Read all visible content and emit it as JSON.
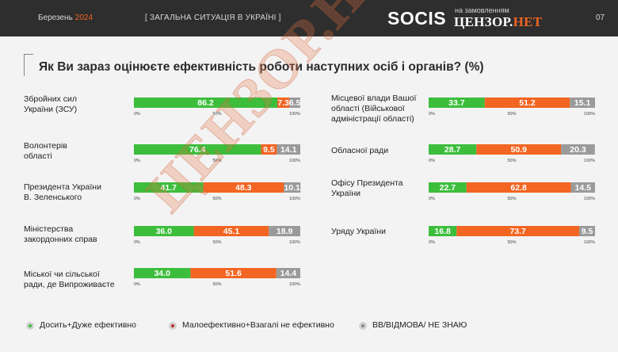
{
  "header": {
    "month": "Березень",
    "year": "2024",
    "topic": "[ ЗАГАЛЬНА СИТУАЦІЯ В УКРАЇНІ ]",
    "logo_socis": "SOCIS",
    "logo_for": "на замовленням",
    "logo_censor": "ЦЕНЗОР.",
    "logo_net": "НЕТ",
    "page": "07"
  },
  "watermark": "ЦЕНЗОР.НЕТ",
  "colors": {
    "green": "#3cbe3c",
    "orange": "#f26522",
    "gray": "#9a9a9a"
  },
  "chart_data": {
    "type": "bar",
    "title": "Як Ви зараз оцінюєте ефективність роботи наступних осіб і органів? (%)",
    "stacked": true,
    "orientation": "horizontal",
    "xlim": [
      0,
      100
    ],
    "ticks": [
      "0%",
      "50%",
      "100%"
    ],
    "categories": [
      "Збройних сил України (ЗСУ)",
      "Волонтерів області",
      "Президента України В. Зеленського",
      "Міністерства закордонних справ",
      "Міської чи сільської ради, де Випроживаєте",
      "Місцевої влади Вашої області (Військової адміністрації області)",
      "Обласної ради",
      "Офісу Президента України",
      "Уряду України"
    ],
    "series": [
      {
        "name": "Досить+Дуже ефективно",
        "values": [
          86.2,
          76.4,
          41.7,
          36.0,
          34.0,
          33.7,
          28.7,
          22.7,
          16.8
        ]
      },
      {
        "name": "Малоефективно+Взагалі не ефективно",
        "values": [
          7.3,
          9.5,
          48.3,
          45.1,
          51.6,
          51.2,
          50.9,
          62.8,
          73.7
        ]
      },
      {
        "name": "ВВ/ВІДМОВА/ НЕ ЗНАЮ",
        "values": [
          6.5,
          14.1,
          10.1,
          18.9,
          14.4,
          15.1,
          20.3,
          14.5,
          9.5
        ]
      }
    ],
    "labels": [
      [
        "86.2",
        "7.3",
        "6.5"
      ],
      [
        "76.4",
        "9.5",
        "14.1"
      ],
      [
        "41.7",
        "48.3",
        "10.1"
      ],
      [
        "36.0",
        "45.1",
        "18.9"
      ],
      [
        "34.0",
        "51.6",
        "14.4"
      ],
      [
        "33.7",
        "51.2",
        "15.1"
      ],
      [
        "28.7",
        "50.9",
        "20.3"
      ],
      [
        "22.7",
        "62.8",
        "14.5"
      ],
      [
        "16.8",
        "73.7",
        "9.5"
      ]
    ],
    "legend": "bottom"
  },
  "rows": [
    {
      "label_lines": [
        "Збройних сил",
        "України (ЗСУ)"
      ]
    },
    {
      "label_lines": [
        "Волонтерів",
        "області"
      ]
    },
    {
      "label_lines": [
        "Президента України",
        "В. Зеленського"
      ]
    },
    {
      "label_lines": [
        "Міністерства",
        "закордонних справ"
      ]
    },
    {
      "label_lines": [
        "Міської чи сільської",
        "ради, де Випроживаєте"
      ]
    },
    {
      "label_lines": [
        "Місцевої влади Вашої",
        "області (Військової",
        "адміністрації області)"
      ]
    },
    {
      "label_lines": [
        "Обласної ради"
      ]
    },
    {
      "label_lines": [
        "Офісу Президента",
        "України"
      ]
    },
    {
      "label_lines": [
        "Уряду України"
      ]
    }
  ],
  "legend": [
    {
      "label": "Досить+Дуже ефективно",
      "color": "#3cbe3c"
    },
    {
      "label": "Малоефективно+Взагалі не ефективно",
      "color": "#c0302a"
    },
    {
      "label": "ВВ/ВІДМОВА/ НЕ ЗНАЮ",
      "color": "#888888"
    }
  ]
}
